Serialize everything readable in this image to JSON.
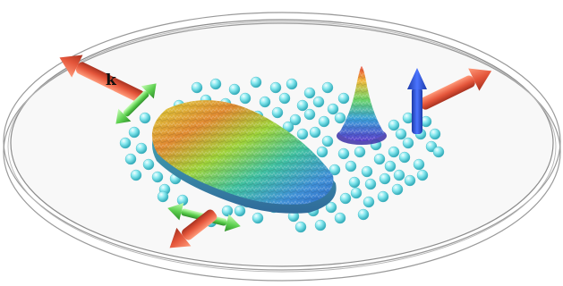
{
  "labels": {
    "wavevector": "k"
  },
  "colors": {
    "ring_stroke": "#8a8a8a",
    "disk_fill": "#f7f7f7",
    "arrow_red": "#e4553a",
    "arrow_green": "#5ccf4e",
    "arrow_blue": "#2d55d8",
    "sphere_cyan": "#7fe6ee"
  },
  "icons": [
    "red-laser-arrow",
    "green-polarization-arrow",
    "blue-spin-arrow",
    "cyan-atom-sphere",
    "atomic-cloud-surface",
    "density-peak"
  ]
}
